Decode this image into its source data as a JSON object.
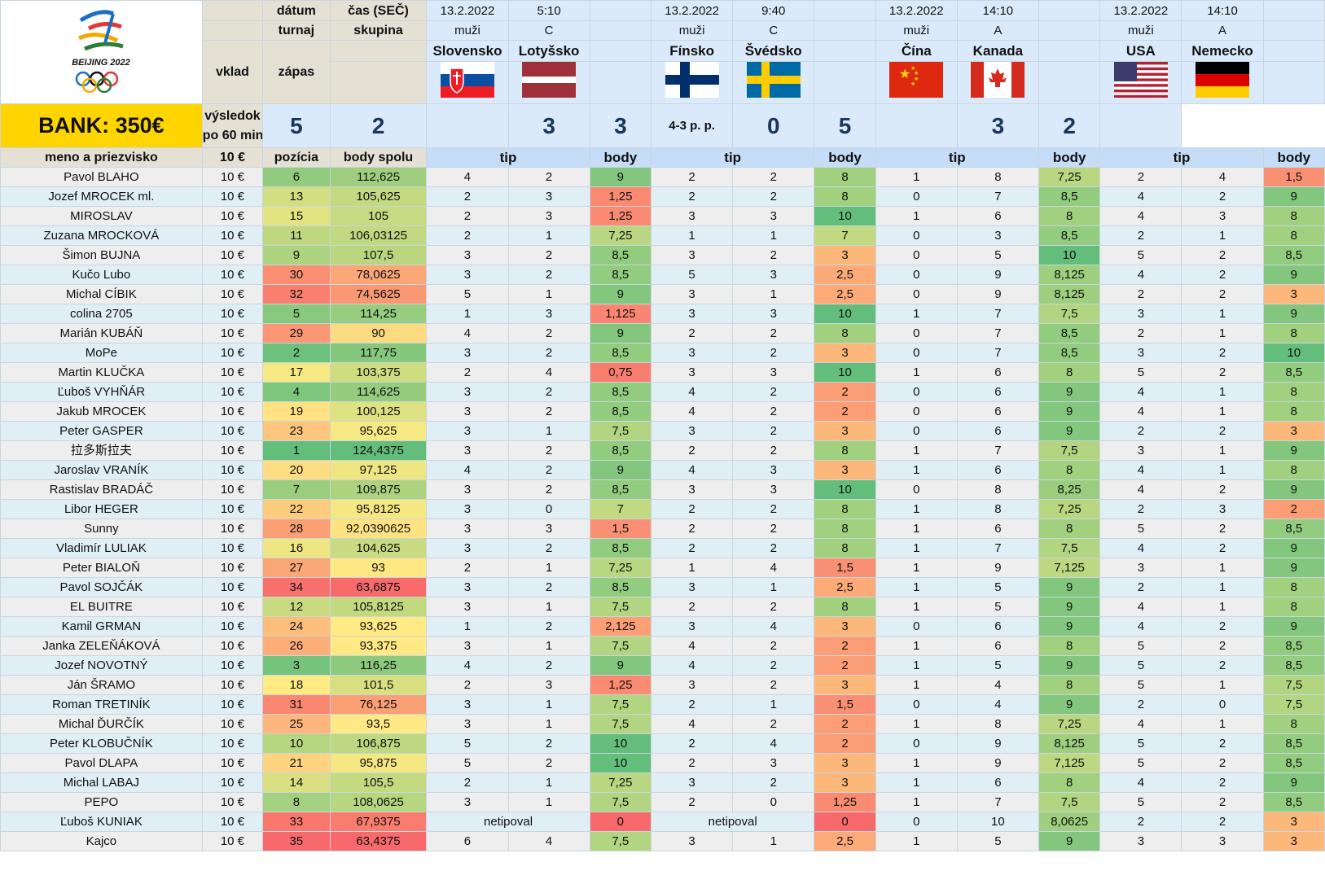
{
  "logo": {
    "text": "BEIJING 2022"
  },
  "bank": "BANK: 350€",
  "header": {
    "datum": "dátum",
    "cas": "čas (SEČ)",
    "turnaj": "turnaj",
    "skupina": "skupina",
    "vklad": "vklad",
    "zapas": "zápas",
    "vysledok": "výsledok",
    "po60": "po 60 min.",
    "meno": "meno a priezvisko",
    "vklad_val": "10 €",
    "pozicia": "pozícia",
    "body_spolu": "body spolu",
    "tip": "tip",
    "body": "body"
  },
  "matches": [
    {
      "date": "13.2.2022",
      "time": "5:10",
      "category": "muži",
      "group": "C",
      "team1": "Slovensko",
      "team2": "Lotyšsko",
      "score1": "5",
      "score2": "2",
      "note": "",
      "flag1": "slovakia-flag",
      "flag2": "latvia-flag"
    },
    {
      "date": "13.2.2022",
      "time": "9:40",
      "category": "muži",
      "group": "C",
      "team1": "Fínsko",
      "team2": "Švédsko",
      "score1": "3",
      "score2": "3",
      "note": "4-3 p. p.",
      "flag1": "finland-flag",
      "flag2": "sweden-flag"
    },
    {
      "date": "13.2.2022",
      "time": "14:10",
      "category": "muži",
      "group": "A",
      "team1": "Čína",
      "team2": "Kanada",
      "score1": "0",
      "score2": "5",
      "note": "",
      "flag1": "china-flag",
      "flag2": "canada-flag"
    },
    {
      "date": "13.2.2022",
      "time": "14:10",
      "category": "muži",
      "group": "A",
      "team1": "USA",
      "team2": "Nemecko",
      "score1": "3",
      "score2": "2",
      "note": "",
      "flag1": "usa-flag",
      "flag2": "germany-flag"
    }
  ],
  "players": [
    {
      "name": "Pavol BLAHO",
      "stake": "10 €",
      "pos": "6",
      "total": "112,625",
      "m": [
        [
          "4",
          "2",
          "9"
        ],
        [
          "2",
          "2",
          "8"
        ],
        [
          "1",
          "8",
          "7,25"
        ],
        [
          "2",
          "4",
          "1,5"
        ]
      ]
    },
    {
      "name": "Jozef MROCEK ml.",
      "stake": "10 €",
      "pos": "13",
      "total": "105,625",
      "m": [
        [
          "2",
          "3",
          "1,25"
        ],
        [
          "2",
          "2",
          "8"
        ],
        [
          "0",
          "7",
          "8,5"
        ],
        [
          "4",
          "2",
          "9"
        ]
      ]
    },
    {
      "name": "MIROSLAV",
      "stake": "10 €",
      "pos": "15",
      "total": "105",
      "m": [
        [
          "2",
          "3",
          "1,25"
        ],
        [
          "3",
          "3",
          "10"
        ],
        [
          "1",
          "6",
          "8"
        ],
        [
          "4",
          "3",
          "8"
        ]
      ]
    },
    {
      "name": "Zuzana MROCKOVÁ",
      "stake": "10 €",
      "pos": "11",
      "total": "106,03125",
      "m": [
        [
          "2",
          "1",
          "7,25"
        ],
        [
          "1",
          "1",
          "7"
        ],
        [
          "0",
          "3",
          "8,5"
        ],
        [
          "2",
          "1",
          "8"
        ]
      ]
    },
    {
      "name": "Šimon BUJNA",
      "stake": "10 €",
      "pos": "9",
      "total": "107,5",
      "m": [
        [
          "3",
          "2",
          "8,5"
        ],
        [
          "3",
          "2",
          "3"
        ],
        [
          "0",
          "5",
          "10"
        ],
        [
          "5",
          "2",
          "8,5"
        ]
      ]
    },
    {
      "name": "Kučo Lubo",
      "stake": "10 €",
      "pos": "30",
      "total": "78,0625",
      "m": [
        [
          "3",
          "2",
          "8,5"
        ],
        [
          "5",
          "3",
          "2,5"
        ],
        [
          "0",
          "9",
          "8,125"
        ],
        [
          "4",
          "2",
          "9"
        ]
      ]
    },
    {
      "name": "Michal CÍBIK",
      "stake": "10 €",
      "pos": "32",
      "total": "74,5625",
      "m": [
        [
          "5",
          "1",
          "9"
        ],
        [
          "3",
          "1",
          "2,5"
        ],
        [
          "0",
          "9",
          "8,125"
        ],
        [
          "2",
          "2",
          "3"
        ]
      ]
    },
    {
      "name": "colina 2705",
      "stake": "10 €",
      "pos": "5",
      "total": "114,25",
      "m": [
        [
          "1",
          "3",
          "1,125"
        ],
        [
          "3",
          "3",
          "10"
        ],
        [
          "1",
          "7",
          "7,5"
        ],
        [
          "3",
          "1",
          "9"
        ]
      ]
    },
    {
      "name": "Marián KUBÁŇ",
      "stake": "10 €",
      "pos": "29",
      "total": "90",
      "m": [
        [
          "4",
          "2",
          "9"
        ],
        [
          "2",
          "2",
          "8"
        ],
        [
          "0",
          "7",
          "8,5"
        ],
        [
          "2",
          "1",
          "8"
        ]
      ]
    },
    {
      "name": "MoPe",
      "stake": "10 €",
      "pos": "2",
      "total": "117,75",
      "m": [
        [
          "3",
          "2",
          "8,5"
        ],
        [
          "3",
          "2",
          "3"
        ],
        [
          "0",
          "7",
          "8,5"
        ],
        [
          "3",
          "2",
          "10"
        ]
      ]
    },
    {
      "name": "Martin KLUČKA",
      "stake": "10 €",
      "pos": "17",
      "total": "103,375",
      "m": [
        [
          "2",
          "4",
          "0,75"
        ],
        [
          "3",
          "3",
          "10"
        ],
        [
          "1",
          "6",
          "8"
        ],
        [
          "5",
          "2",
          "8,5"
        ]
      ]
    },
    {
      "name": "Ľuboš VYHŇÁR",
      "stake": "10 €",
      "pos": "4",
      "total": "114,625",
      "m": [
        [
          "3",
          "2",
          "8,5"
        ],
        [
          "4",
          "2",
          "2"
        ],
        [
          "0",
          "6",
          "9"
        ],
        [
          "4",
          "1",
          "8"
        ]
      ]
    },
    {
      "name": "Jakub MROCEK",
      "stake": "10 €",
      "pos": "19",
      "total": "100,125",
      "m": [
        [
          "3",
          "2",
          "8,5"
        ],
        [
          "4",
          "2",
          "2"
        ],
        [
          "0",
          "6",
          "9"
        ],
        [
          "4",
          "1",
          "8"
        ]
      ]
    },
    {
      "name": "Peter GASPER",
      "stake": "10 €",
      "pos": "23",
      "total": "95,625",
      "m": [
        [
          "3",
          "1",
          "7,5"
        ],
        [
          "3",
          "2",
          "3"
        ],
        [
          "0",
          "6",
          "9"
        ],
        [
          "2",
          "2",
          "3"
        ]
      ]
    },
    {
      "name": "拉多斯拉夫",
      "stake": "10 €",
      "pos": "1",
      "total": "124,4375",
      "m": [
        [
          "3",
          "2",
          "8,5"
        ],
        [
          "2",
          "2",
          "8"
        ],
        [
          "1",
          "7",
          "7,5"
        ],
        [
          "3",
          "1",
          "9"
        ]
      ]
    },
    {
      "name": "Jaroslav VRANÍK",
      "stake": "10 €",
      "pos": "20",
      "total": "97,125",
      "m": [
        [
          "4",
          "2",
          "9"
        ],
        [
          "4",
          "3",
          "3"
        ],
        [
          "1",
          "6",
          "8"
        ],
        [
          "4",
          "1",
          "8"
        ]
      ]
    },
    {
      "name": "Rastislav BRADÁČ",
      "stake": "10 €",
      "pos": "7",
      "total": "109,875",
      "m": [
        [
          "3",
          "2",
          "8,5"
        ],
        [
          "3",
          "3",
          "10"
        ],
        [
          "0",
          "8",
          "8,25"
        ],
        [
          "4",
          "2",
          "9"
        ]
      ]
    },
    {
      "name": "Libor HEGER",
      "stake": "10 €",
      "pos": "22",
      "total": "95,8125",
      "m": [
        [
          "3",
          "0",
          "7"
        ],
        [
          "2",
          "2",
          "8"
        ],
        [
          "1",
          "8",
          "7,25"
        ],
        [
          "2",
          "3",
          "2"
        ]
      ]
    },
    {
      "name": "Sunny",
      "stake": "10 €",
      "pos": "28",
      "total": "92,0390625",
      "m": [
        [
          "3",
          "3",
          "1,5"
        ],
        [
          "2",
          "2",
          "8"
        ],
        [
          "1",
          "6",
          "8"
        ],
        [
          "5",
          "2",
          "8,5"
        ]
      ]
    },
    {
      "name": "Vladimír LULIAK",
      "stake": "10 €",
      "pos": "16",
      "total": "104,625",
      "m": [
        [
          "3",
          "2",
          "8,5"
        ],
        [
          "2",
          "2",
          "8"
        ],
        [
          "1",
          "7",
          "7,5"
        ],
        [
          "4",
          "2",
          "9"
        ]
      ]
    },
    {
      "name": "Peter BIALOŇ",
      "stake": "10 €",
      "pos": "27",
      "total": "93",
      "m": [
        [
          "2",
          "1",
          "7,25"
        ],
        [
          "1",
          "4",
          "1,5"
        ],
        [
          "1",
          "9",
          "7,125"
        ],
        [
          "3",
          "1",
          "9"
        ]
      ]
    },
    {
      "name": "Pavol SOJČÁK",
      "stake": "10 €",
      "pos": "34",
      "total": "63,6875",
      "m": [
        [
          "3",
          "2",
          "8,5"
        ],
        [
          "3",
          "1",
          "2,5"
        ],
        [
          "1",
          "5",
          "9"
        ],
        [
          "2",
          "1",
          "8"
        ]
      ]
    },
    {
      "name": "EL BUITRE",
      "stake": "10 €",
      "pos": "12",
      "total": "105,8125",
      "m": [
        [
          "3",
          "1",
          "7,5"
        ],
        [
          "2",
          "2",
          "8"
        ],
        [
          "1",
          "5",
          "9"
        ],
        [
          "4",
          "1",
          "8"
        ]
      ]
    },
    {
      "name": "Kamil GRMAN",
      "stake": "10 €",
      "pos": "24",
      "total": "93,625",
      "m": [
        [
          "1",
          "2",
          "2,125"
        ],
        [
          "3",
          "4",
          "3"
        ],
        [
          "0",
          "6",
          "9"
        ],
        [
          "4",
          "2",
          "9"
        ]
      ]
    },
    {
      "name": "Janka ZELEŇÁKOVÁ",
      "stake": "10 €",
      "pos": "26",
      "total": "93,375",
      "m": [
        [
          "3",
          "1",
          "7,5"
        ],
        [
          "4",
          "2",
          "2"
        ],
        [
          "1",
          "6",
          "8"
        ],
        [
          "5",
          "2",
          "8,5"
        ]
      ]
    },
    {
      "name": "Jozef NOVOTNÝ",
      "stake": "10 €",
      "pos": "3",
      "total": "116,25",
      "m": [
        [
          "4",
          "2",
          "9"
        ],
        [
          "4",
          "2",
          "2"
        ],
        [
          "1",
          "5",
          "9"
        ],
        [
          "5",
          "2",
          "8,5"
        ]
      ]
    },
    {
      "name": "Ján ŠRAMO",
      "stake": "10 €",
      "pos": "18",
      "total": "101,5",
      "m": [
        [
          "2",
          "3",
          "1,25"
        ],
        [
          "3",
          "2",
          "3"
        ],
        [
          "1",
          "4",
          "8"
        ],
        [
          "5",
          "1",
          "7,5"
        ]
      ]
    },
    {
      "name": "Roman TRETINÍK",
      "stake": "10 €",
      "pos": "31",
      "total": "76,125",
      "m": [
        [
          "3",
          "1",
          "7,5"
        ],
        [
          "2",
          "1",
          "1,5"
        ],
        [
          "0",
          "4",
          "9"
        ],
        [
          "2",
          "0",
          "7,5"
        ]
      ]
    },
    {
      "name": "Michal ĎURČÍK",
      "stake": "10 €",
      "pos": "25",
      "total": "93,5",
      "m": [
        [
          "3",
          "1",
          "7,5"
        ],
        [
          "4",
          "2",
          "2"
        ],
        [
          "1",
          "8",
          "7,25"
        ],
        [
          "4",
          "1",
          "8"
        ]
      ]
    },
    {
      "name": "Peter KLOBUČNÍK",
      "stake": "10 €",
      "pos": "10",
      "total": "106,875",
      "m": [
        [
          "5",
          "2",
          "10"
        ],
        [
          "2",
          "4",
          "2"
        ],
        [
          "0",
          "9",
          "8,125"
        ],
        [
          "5",
          "2",
          "8,5"
        ]
      ]
    },
    {
      "name": "Pavol DLAPA",
      "stake": "10 €",
      "pos": "21",
      "total": "95,875",
      "m": [
        [
          "5",
          "2",
          "10"
        ],
        [
          "2",
          "3",
          "3"
        ],
        [
          "1",
          "9",
          "7,125"
        ],
        [
          "5",
          "2",
          "8,5"
        ]
      ]
    },
    {
      "name": "Michal LABAJ",
      "stake": "10 €",
      "pos": "14",
      "total": "105,5",
      "m": [
        [
          "2",
          "1",
          "7,25"
        ],
        [
          "3",
          "2",
          "3"
        ],
        [
          "1",
          "6",
          "8"
        ],
        [
          "4",
          "2",
          "9"
        ]
      ]
    },
    {
      "name": "PEPO",
      "stake": "10 €",
      "pos": "8",
      "total": "108,0625",
      "m": [
        [
          "3",
          "1",
          "7,5"
        ],
        [
          "2",
          "0",
          "1,25"
        ],
        [
          "1",
          "7",
          "7,5"
        ],
        [
          "5",
          "2",
          "8,5"
        ]
      ]
    },
    {
      "name": "Ľuboš KUNIAK",
      "stake": "10 €",
      "pos": "33",
      "total": "67,9375",
      "m": [
        [
          "netipoval",
          "",
          "0"
        ],
        [
          "netipoval",
          "",
          "0"
        ],
        [
          "0",
          "10",
          "8,0625"
        ],
        [
          "2",
          "2",
          "3"
        ]
      ]
    },
    {
      "name": "Kajco",
      "stake": "10 €",
      "pos": "35",
      "total": "63,4375",
      "m": [
        [
          "6",
          "4",
          "7,5"
        ],
        [
          "3",
          "1",
          "2,5"
        ],
        [
          "1",
          "5",
          "9"
        ],
        [
          "3",
          "3",
          "3"
        ]
      ]
    }
  ]
}
